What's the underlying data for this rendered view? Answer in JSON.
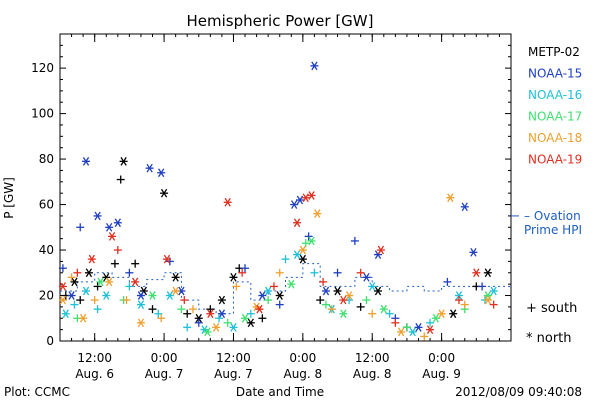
{
  "chart_data": {
    "type": "scatter",
    "title": "Hemispheric Power [GW]",
    "xlabel": "Date and Time",
    "ylabel": "P [GW]",
    "xlim": [
      "2012-08-06T06:00",
      "2012-08-09T12:00"
    ],
    "ylim": [
      0,
      135
    ],
    "y_ticks": [
      0,
      20,
      40,
      60,
      80,
      100,
      120
    ],
    "x_ticks": [
      {
        "t": "2012-08-06T12:00",
        "line1": "12:00",
        "line2": "Aug. 6"
      },
      {
        "t": "2012-08-07T00:00",
        "line1": "0:00",
        "line2": "Aug. 7"
      },
      {
        "t": "2012-08-07T12:00",
        "line1": "12:00",
        "line2": "Aug. 7"
      },
      {
        "t": "2012-08-08T00:00",
        "line1": "0:00",
        "line2": "Aug. 8"
      },
      {
        "t": "2012-08-08T12:00",
        "line1": "12:00",
        "line2": "Aug. 8"
      },
      {
        "t": "2012-08-09T00:00",
        "line1": "0:00",
        "line2": "Aug. 9"
      }
    ],
    "legend": {
      "placement": "right",
      "satellites": [
        {
          "name": "METP-02",
          "color": "#000000"
        },
        {
          "name": "NOAA-15",
          "color": "#1f3fbf"
        },
        {
          "name": "NOAA-16",
          "color": "#22c0d8"
        },
        {
          "name": "NOAA-17",
          "color": "#40e070"
        },
        {
          "name": "NOAA-18",
          "color": "#f0a030"
        },
        {
          "name": "NOAA-19",
          "color": "#e03020"
        }
      ],
      "markers": [
        {
          "symbol": "+",
          "label": "south"
        },
        {
          "symbol": "*",
          "label": "north"
        }
      ],
      "ovation": {
        "line1": "– Ovation",
        "line2": "Prime HPI",
        "color": "#1f5fbf",
        "value": 55
      }
    },
    "series": [
      {
        "name": "METP-02",
        "points": [
          [
            "2012-08-06T07:00",
            20,
            "s"
          ],
          [
            "2012-08-06T08:30",
            26,
            "n"
          ],
          [
            "2012-08-06T09:30",
            18,
            "s"
          ],
          [
            "2012-08-06T11:00",
            30,
            "n"
          ],
          [
            "2012-08-06T12:30",
            24,
            "s"
          ],
          [
            "2012-08-06T14:00",
            28,
            "n"
          ],
          [
            "2012-08-06T15:30",
            34,
            "s"
          ],
          [
            "2012-08-06T17:00",
            79,
            "n"
          ],
          [
            "2012-08-06T16:30",
            71,
            "s"
          ],
          [
            "2012-08-06T19:00",
            34,
            "s"
          ],
          [
            "2012-08-06T20:30",
            22,
            "n"
          ],
          [
            "2012-08-06T22:00",
            14,
            "s"
          ],
          [
            "2012-08-07T00:00",
            65,
            "n"
          ],
          [
            "2012-08-07T02:00",
            28,
            "n"
          ],
          [
            "2012-08-07T04:00",
            12,
            "s"
          ],
          [
            "2012-08-07T06:00",
            10,
            "n"
          ],
          [
            "2012-08-07T08:00",
            14,
            "s"
          ],
          [
            "2012-08-07T10:00",
            18,
            "n"
          ],
          [
            "2012-08-07T12:00",
            28,
            "n"
          ],
          [
            "2012-08-07T13:00",
            32,
            "s"
          ],
          [
            "2012-08-07T15:00",
            8,
            "n"
          ],
          [
            "2012-08-07T17:00",
            10,
            "s"
          ],
          [
            "2012-08-07T20:00",
            20,
            "n"
          ],
          [
            "2012-08-08T00:00",
            36,
            "n"
          ],
          [
            "2012-08-08T03:00",
            18,
            "s"
          ],
          [
            "2012-08-08T06:00",
            22,
            "n"
          ],
          [
            "2012-08-08T10:00",
            15,
            "s"
          ],
          [
            "2012-08-08T13:00",
            22,
            "n"
          ],
          [
            "2012-08-08T18:00",
            6,
            "s"
          ],
          [
            "2012-08-09T02:00",
            12,
            "n"
          ],
          [
            "2012-08-09T06:00",
            24,
            "s"
          ],
          [
            "2012-08-09T08:00",
            30,
            "n"
          ]
        ]
      },
      {
        "name": "NOAA-15",
        "points": [
          [
            "2012-08-06T06:30",
            32,
            "s"
          ],
          [
            "2012-08-06T08:00",
            20,
            "n"
          ],
          [
            "2012-08-06T09:30",
            50,
            "s"
          ],
          [
            "2012-08-06T10:30",
            79,
            "n"
          ],
          [
            "2012-08-06T12:30",
            55,
            "n"
          ],
          [
            "2012-08-06T14:30",
            50,
            "n"
          ],
          [
            "2012-08-06T16:00",
            52,
            "n"
          ],
          [
            "2012-08-06T18:00",
            30,
            "s"
          ],
          [
            "2012-08-06T20:00",
            20,
            "n"
          ],
          [
            "2012-08-06T21:30",
            76,
            "n"
          ],
          [
            "2012-08-06T23:30",
            74,
            "n"
          ],
          [
            "2012-08-07T01:00",
            35,
            "s"
          ],
          [
            "2012-08-07T03:00",
            22,
            "n"
          ],
          [
            "2012-08-07T06:00",
            8,
            "s"
          ],
          [
            "2012-08-07T10:00",
            12,
            "n"
          ],
          [
            "2012-08-07T14:00",
            32,
            "s"
          ],
          [
            "2012-08-07T17:00",
            20,
            "n"
          ],
          [
            "2012-08-07T20:00",
            16,
            "s"
          ],
          [
            "2012-08-07T22:30",
            60,
            "n"
          ],
          [
            "2012-08-07T23:30",
            62,
            "n"
          ],
          [
            "2012-08-08T01:00",
            46,
            "s"
          ],
          [
            "2012-08-08T02:00",
            121,
            "n"
          ],
          [
            "2012-08-08T04:00",
            22,
            "n"
          ],
          [
            "2012-08-08T06:00",
            30,
            "s"
          ],
          [
            "2012-08-08T09:00",
            44,
            "s"
          ],
          [
            "2012-08-08T11:00",
            28,
            "n"
          ],
          [
            "2012-08-08T13:00",
            38,
            "n"
          ],
          [
            "2012-08-08T16:00",
            10,
            "s"
          ],
          [
            "2012-08-08T20:00",
            6,
            "n"
          ],
          [
            "2012-08-09T01:00",
            26,
            "s"
          ],
          [
            "2012-08-09T04:00",
            59,
            "n"
          ],
          [
            "2012-08-09T05:30",
            39,
            "n"
          ],
          [
            "2012-08-09T07:00",
            24,
            "s"
          ]
        ]
      },
      {
        "name": "NOAA-16",
        "points": [
          [
            "2012-08-06T07:00",
            12,
            "n"
          ],
          [
            "2012-08-06T08:30",
            16,
            "s"
          ],
          [
            "2012-08-06T10:30",
            22,
            "n"
          ],
          [
            "2012-08-06T12:30",
            14,
            "s"
          ],
          [
            "2012-08-06T14:00",
            20,
            "n"
          ],
          [
            "2012-08-06T18:00",
            24,
            "s"
          ],
          [
            "2012-08-06T20:00",
            16,
            "n"
          ],
          [
            "2012-08-06T23:00",
            12,
            "s"
          ],
          [
            "2012-08-07T01:00",
            20,
            "n"
          ],
          [
            "2012-08-07T04:00",
            6,
            "s"
          ],
          [
            "2012-08-07T07:00",
            5,
            "n"
          ],
          [
            "2012-08-07T09:30",
            10,
            "s"
          ],
          [
            "2012-08-07T12:00",
            6,
            "n"
          ],
          [
            "2012-08-07T15:00",
            12,
            "s"
          ],
          [
            "2012-08-07T18:00",
            22,
            "n"
          ],
          [
            "2012-08-07T21:00",
            36,
            "s"
          ],
          [
            "2012-08-07T23:00",
            38,
            "n"
          ],
          [
            "2012-08-08T02:00",
            30,
            "s"
          ],
          [
            "2012-08-08T05:00",
            14,
            "n"
          ],
          [
            "2012-08-08T08:00",
            18,
            "s"
          ],
          [
            "2012-08-08T12:00",
            24,
            "n"
          ],
          [
            "2012-08-08T15:00",
            12,
            "s"
          ],
          [
            "2012-08-08T19:00",
            4,
            "n"
          ],
          [
            "2012-08-08T22:00",
            8,
            "s"
          ],
          [
            "2012-08-09T03:00",
            20,
            "n"
          ],
          [
            "2012-08-09T07:30",
            18,
            "s"
          ],
          [
            "2012-08-09T09:00",
            22,
            "n"
          ]
        ]
      },
      {
        "name": "NOAA-17",
        "points": [
          [
            "2012-08-06T09:00",
            10,
            "s"
          ],
          [
            "2012-08-06T13:00",
            26,
            "n"
          ],
          [
            "2012-08-06T17:00",
            18,
            "s"
          ],
          [
            "2012-08-06T22:00",
            20,
            "n"
          ],
          [
            "2012-08-07T03:00",
            14,
            "s"
          ],
          [
            "2012-08-07T07:30",
            4,
            "n"
          ],
          [
            "2012-08-07T11:00",
            8,
            "s"
          ],
          [
            "2012-08-07T14:00",
            10,
            "n"
          ],
          [
            "2012-08-07T18:00",
            18,
            "s"
          ],
          [
            "2012-08-07T22:00",
            25,
            "n"
          ],
          [
            "2012-08-08T00:30",
            43,
            "s"
          ],
          [
            "2012-08-08T01:30",
            44,
            "n"
          ],
          [
            "2012-08-08T04:00",
            16,
            "s"
          ],
          [
            "2012-08-08T07:00",
            12,
            "n"
          ],
          [
            "2012-08-08T11:00",
            18,
            "s"
          ],
          [
            "2012-08-08T14:00",
            14,
            "n"
          ],
          [
            "2012-08-08T18:00",
            6,
            "s"
          ],
          [
            "2012-08-08T23:00",
            10,
            "n"
          ],
          [
            "2012-08-09T04:00",
            14,
            "s"
          ],
          [
            "2012-08-09T08:00",
            20,
            "n"
          ]
        ]
      },
      {
        "name": "NOAA-18",
        "points": [
          [
            "2012-08-06T06:30",
            18,
            "n"
          ],
          [
            "2012-08-06T08:00",
            28,
            "s"
          ],
          [
            "2012-08-06T10:00",
            10,
            "n"
          ],
          [
            "2012-08-06T12:00",
            18,
            "s"
          ],
          [
            "2012-08-06T14:30",
            26,
            "n"
          ],
          [
            "2012-08-06T17:30",
            18,
            "s"
          ],
          [
            "2012-08-06T20:00",
            8,
            "n"
          ],
          [
            "2012-08-06T23:30",
            10,
            "s"
          ],
          [
            "2012-08-07T02:00",
            22,
            "n"
          ],
          [
            "2012-08-07T05:00",
            14,
            "s"
          ],
          [
            "2012-08-07T09:00",
            6,
            "n"
          ],
          [
            "2012-08-07T12:30",
            24,
            "s"
          ],
          [
            "2012-08-07T16:00",
            15,
            "n"
          ],
          [
            "2012-08-07T20:00",
            30,
            "s"
          ],
          [
            "2012-08-08T00:00",
            40,
            "n"
          ],
          [
            "2012-08-08T02:30",
            56,
            "n"
          ],
          [
            "2012-08-08T05:00",
            14,
            "s"
          ],
          [
            "2012-08-08T08:00",
            20,
            "n"
          ],
          [
            "2012-08-08T12:00",
            12,
            "s"
          ],
          [
            "2012-08-08T17:00",
            4,
            "n"
          ],
          [
            "2012-08-08T21:00",
            2,
            "s"
          ],
          [
            "2012-08-09T00:00",
            12,
            "n"
          ],
          [
            "2012-08-09T01:30",
            63,
            "n"
          ],
          [
            "2012-08-09T04:00",
            16,
            "s"
          ],
          [
            "2012-08-09T08:00",
            18,
            "n"
          ]
        ]
      },
      {
        "name": "NOAA-19",
        "points": [
          [
            "2012-08-06T06:30",
            24,
            "n"
          ],
          [
            "2012-08-06T09:00",
            30,
            "s"
          ],
          [
            "2012-08-06T11:30",
            36,
            "n"
          ],
          [
            "2012-08-06T15:00",
            46,
            "n"
          ],
          [
            "2012-08-06T16:00",
            40,
            "s"
          ],
          [
            "2012-08-06T19:00",
            26,
            "n"
          ],
          [
            "2012-08-07T00:30",
            36,
            "n"
          ],
          [
            "2012-08-07T03:30",
            18,
            "s"
          ],
          [
            "2012-08-07T08:00",
            12,
            "n"
          ],
          [
            "2012-08-07T11:00",
            61,
            "n"
          ],
          [
            "2012-08-07T13:30",
            30,
            "s"
          ],
          [
            "2012-08-07T16:30",
            14,
            "n"
          ],
          [
            "2012-08-07T19:00",
            24,
            "s"
          ],
          [
            "2012-08-07T23:00",
            52,
            "n"
          ],
          [
            "2012-08-08T00:30",
            63,
            "n"
          ],
          [
            "2012-08-08T01:30",
            64,
            "n"
          ],
          [
            "2012-08-08T03:30",
            26,
            "s"
          ],
          [
            "2012-08-08T07:00",
            18,
            "n"
          ],
          [
            "2012-08-08T10:00",
            30,
            "s"
          ],
          [
            "2012-08-08T13:30",
            40,
            "n"
          ],
          [
            "2012-08-08T16:00",
            8,
            "s"
          ],
          [
            "2012-08-08T22:00",
            5,
            "n"
          ],
          [
            "2012-08-09T03:00",
            18,
            "s"
          ],
          [
            "2012-08-09T06:00",
            30,
            "n"
          ],
          [
            "2012-08-09T09:00",
            16,
            "s"
          ]
        ]
      }
    ],
    "hpi_steps": [
      [
        "2012-08-06T06:00",
        22
      ],
      [
        "2012-08-06T09:00",
        26
      ],
      [
        "2012-08-06T12:00",
        30
      ],
      [
        "2012-08-06T15:00",
        28
      ],
      [
        "2012-08-06T18:00",
        24
      ],
      [
        "2012-08-06T21:00",
        27
      ],
      [
        "2012-08-07T00:00",
        30
      ],
      [
        "2012-08-07T03:00",
        18
      ],
      [
        "2012-08-07T06:00",
        14
      ],
      [
        "2012-08-07T09:00",
        12
      ],
      [
        "2012-08-07T12:00",
        26
      ],
      [
        "2012-08-07T15:00",
        18
      ],
      [
        "2012-08-07T18:00",
        22
      ],
      [
        "2012-08-07T21:00",
        28
      ],
      [
        "2012-08-08T00:00",
        34
      ],
      [
        "2012-08-08T03:00",
        24
      ],
      [
        "2012-08-08T06:00",
        24
      ],
      [
        "2012-08-08T09:00",
        28
      ],
      [
        "2012-08-08T12:00",
        24
      ],
      [
        "2012-08-08T15:00",
        22
      ],
      [
        "2012-08-08T18:00",
        24
      ],
      [
        "2012-08-08T21:00",
        22
      ],
      [
        "2012-08-09T00:00",
        24
      ],
      [
        "2012-08-09T03:00",
        24
      ],
      [
        "2012-08-09T06:00",
        24
      ],
      [
        "2012-08-09T09:00",
        24
      ]
    ]
  },
  "footer": {
    "left": "Plot: CCMC",
    "right": "2012/08/09 09:40:08"
  }
}
